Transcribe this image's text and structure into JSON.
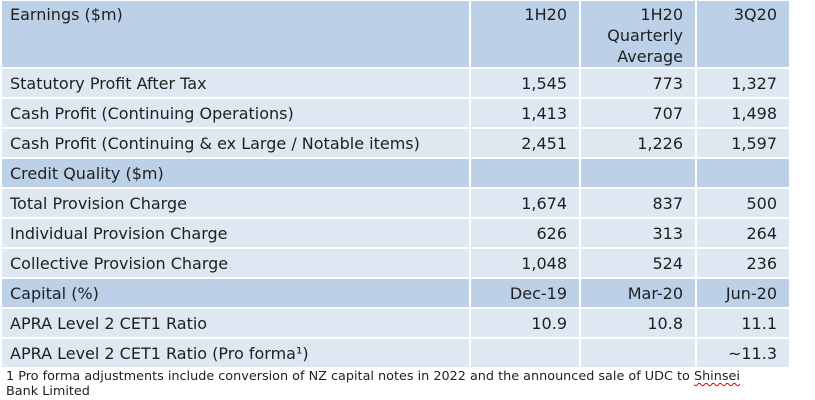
{
  "colors": {
    "section_header_bg": "#bcd1e8",
    "data_row_bg": "#dde8f3",
    "grid_line": "#ffffff",
    "text": "#1f1f1f",
    "spellcheck_underline": "#e00000"
  },
  "chart_data": {
    "type": "table",
    "title": "Earnings ($m)",
    "header": {
      "label": "Earnings ($m)",
      "c1": "1H20",
      "c2": "1H20 Quarterly Average",
      "c3": "3Q20"
    },
    "rows": [
      {
        "label": "Statutory Profit After Tax",
        "c1": "1,545",
        "c2": "773",
        "c3": "1,327",
        "section": false
      },
      {
        "label": "Cash Profit (Continuing Operations)",
        "c1": "1,413",
        "c2": "707",
        "c3": "1,498",
        "section": false
      },
      {
        "label": "Cash Profit (Continuing & ex Large / Notable items)",
        "c1": "2,451",
        "c2": "1,226",
        "c3": "1,597",
        "section": false
      },
      {
        "label": "Credit Quality ($m)",
        "c1": "",
        "c2": "",
        "c3": "",
        "section": true
      },
      {
        "label": "Total Provision Charge",
        "c1": "1,674",
        "c2": "837",
        "c3": "500",
        "section": false
      },
      {
        "label": "Individual Provision Charge",
        "c1": "626",
        "c2": "313",
        "c3": "264",
        "section": false
      },
      {
        "label": "Collective Provision Charge",
        "c1": "1,048",
        "c2": "524",
        "c3": "236",
        "section": false
      },
      {
        "label": "Capital (%)",
        "c1": "Dec-19",
        "c2": "Mar-20",
        "c3": "Jun-20",
        "section": true
      },
      {
        "label": "APRA Level 2 CET1 Ratio",
        "c1": "10.9",
        "c2": "10.8",
        "c3": "11.1",
        "section": false
      },
      {
        "label": "APRA Level 2 CET1 Ratio (Pro forma¹)",
        "c1": "",
        "c2": "",
        "c3": "~11.3",
        "section": false
      }
    ]
  },
  "footnote": {
    "line1_text": "1 Pro forma adjustments include conversion of NZ capital notes in 2022 and the announced sale of UDC to ",
    "flagged_word": "Shinsei",
    "line2_text": "Bank Limited"
  }
}
